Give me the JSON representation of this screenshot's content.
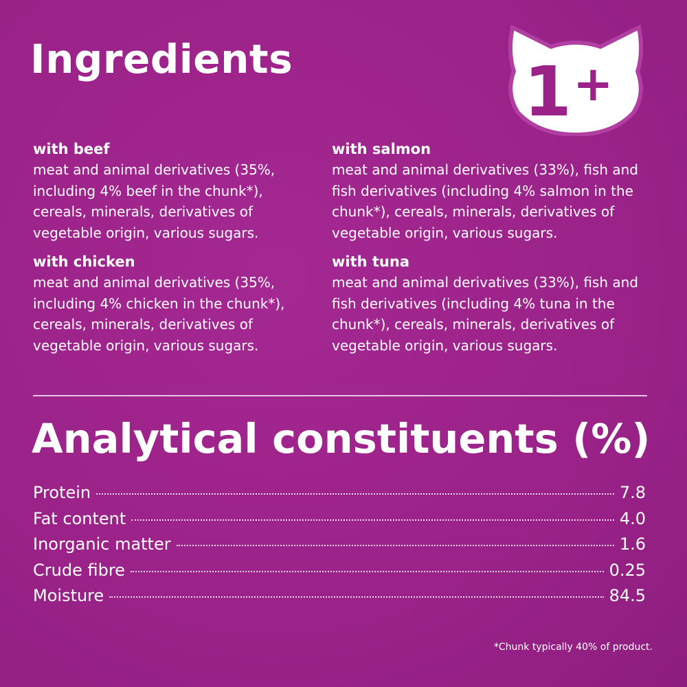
{
  "title": "Ingredients",
  "badge": {
    "icon": "cat-head-icon",
    "text": "1+"
  },
  "ingredients": [
    {
      "heading": "with beef",
      "text": "meat and animal derivatives (35%, including 4% beef in the chunk*), cereals, minerals, derivatives of vegetable origin, various sugars."
    },
    {
      "heading": "with chicken",
      "text": "meat and animal derivatives (35%, including 4% chicken in the chunk*), cereals, minerals, derivatives of vegetable origin, various sugars."
    },
    {
      "heading": "with salmon",
      "text": "meat and animal derivatives (33%), fish and fish derivatives (including 4% salmon in the chunk*), cereals, minerals, derivatives of vegetable origin, various sugars."
    },
    {
      "heading": "with tuna",
      "text": "meat and animal derivatives (33%), fish and fish derivatives (including 4% tuna in the chunk*), cereals, minerals, derivatives of vegetable origin, various sugars."
    }
  ],
  "analytical_title": "Analytical constituents (%)",
  "constituents": [
    {
      "name": "Protein",
      "value": "7.8"
    },
    {
      "name": "Fat content",
      "value": "4.0"
    },
    {
      "name": "Inorganic matter",
      "value": "1.6"
    },
    {
      "name": "Crude fibre",
      "value": "0.25"
    },
    {
      "name": "Moisture",
      "value": "84.5"
    }
  ],
  "footnote": "*Chunk typically 40% of product.",
  "colors": {
    "background": "#9a2288",
    "text": "#ffffff"
  }
}
